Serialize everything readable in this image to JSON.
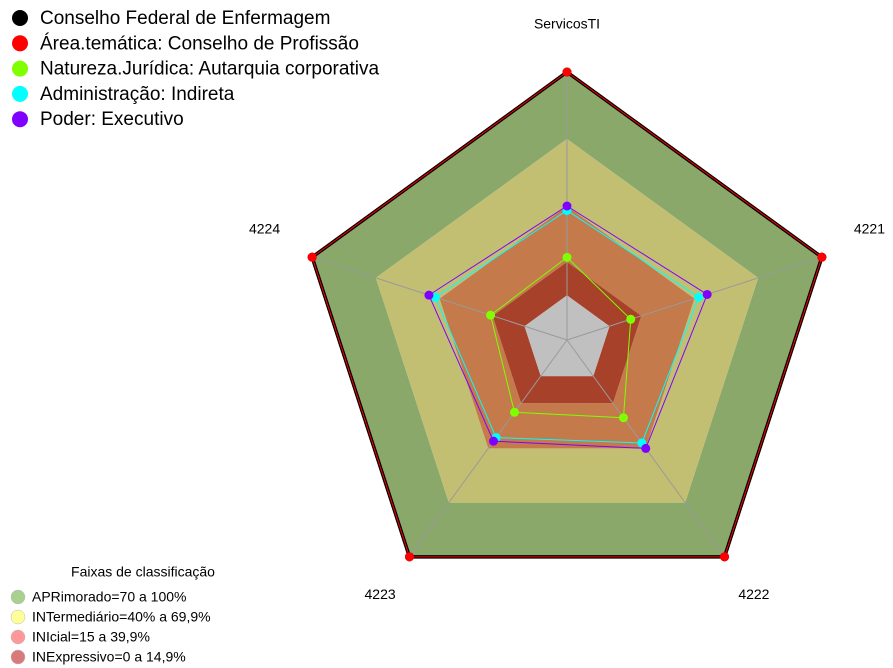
{
  "chart_data": {
    "type": "radar",
    "axes": [
      "ServicosTI",
      "4221",
      "4222",
      "4223",
      "4224"
    ],
    "rlim": [
      -20,
      100
    ],
    "series": [
      {
        "name": "Conselho Federal de Enfermagem",
        "color": "#000000",
        "values": [
          100,
          100,
          100,
          100,
          100
        ]
      },
      {
        "name": "Área.temática: Conselho de Profissão",
        "color": "#ff0000",
        "values": [
          100,
          100,
          100,
          100,
          100
        ]
      },
      {
        "name": "Natureza.Jurídica: Autarquia corporativa",
        "color": "#7fff00",
        "values": [
          17,
          10,
          23,
          20,
          16
        ]
      },
      {
        "name": "Administração: Indireta",
        "color": "#00ffff",
        "values": [
          38,
          42,
          37,
          34,
          42
        ]
      },
      {
        "name": "Poder: Executivo",
        "color": "#8000ff",
        "values": [
          40,
          46,
          40,
          36,
          45
        ]
      }
    ],
    "bands_title": "Faixas de classificação",
    "bands": [
      {
        "label": "APRimorado=70 a 100%",
        "from": 70,
        "to": 100,
        "color": "#8aa86a",
        "swatch": "#a9d18e"
      },
      {
        "label": "INTermediário=40% a 69,9%",
        "from": 40,
        "to": 70,
        "color": "#c2bf72",
        "swatch": "#ffff99"
      },
      {
        "label": "INIcial=15 a 39,9%",
        "from": 15,
        "to": 40,
        "color": "#c47a4b",
        "swatch": "#ff9999"
      },
      {
        "label": "INExpressivo=0 a 14,9%",
        "from": 0,
        "to": 15,
        "color": "#a8412a",
        "swatch": "#d97a7a"
      }
    ],
    "hole_color": "#c0c0c0"
  }
}
